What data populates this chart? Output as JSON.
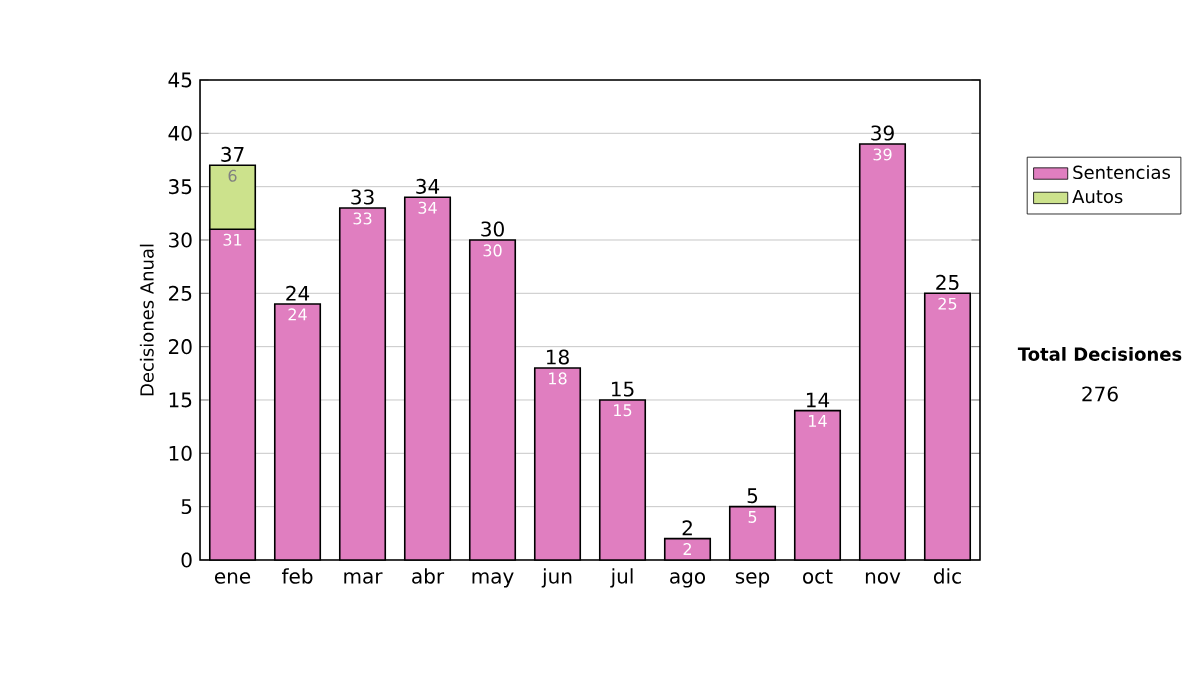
{
  "chart_data": {
    "type": "bar",
    "stacked": true,
    "ylabel": "Decisiones Anual",
    "categories": [
      "ene",
      "feb",
      "mar",
      "abr",
      "may",
      "jun",
      "jul",
      "ago",
      "sep",
      "oct",
      "nov",
      "dic"
    ],
    "series": [
      {
        "name": "Sentencias",
        "color": "#e07ec0",
        "values": [
          31,
          24,
          33,
          34,
          30,
          18,
          15,
          2,
          5,
          14,
          39,
          25
        ]
      },
      {
        "name": "Autos",
        "color": "#cce28c",
        "values": [
          6,
          null,
          null,
          null,
          null,
          null,
          null,
          null,
          null,
          null,
          null,
          null
        ]
      }
    ],
    "totals": [
      "37",
      "24",
      "33",
      "34",
      "30",
      "18",
      "15",
      "2",
      "5",
      "14",
      "39",
      "25"
    ],
    "data_labels": true,
    "ylim": [
      0,
      45
    ],
    "yticks": [
      0,
      5,
      10,
      15,
      20,
      25,
      30,
      35,
      40,
      45
    ],
    "grid": "y",
    "legend": "right",
    "annotations": [
      "Total Decisiones",
      "276"
    ]
  }
}
